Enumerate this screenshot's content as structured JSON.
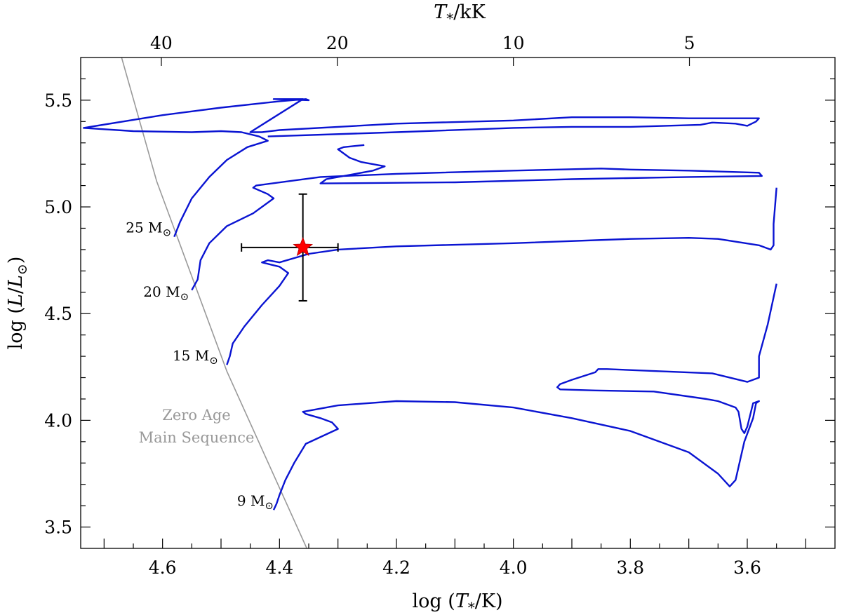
{
  "chart_data": {
    "type": "line",
    "xlabel_bottom": {
      "main": "log (",
      "sym": "T",
      "sub": "*",
      "tail": "/K)"
    },
    "xlabel_top": {
      "sym": "T",
      "sub": "*",
      "tail": "/kK"
    },
    "ylabel": {
      "main": "log (",
      "sym": "L",
      "mid": "/",
      "sym2": "L",
      "sub": "⊙",
      "tail": ")"
    },
    "xlim": [
      4.74,
      3.45
    ],
    "ylim": [
      3.4,
      5.7
    ],
    "x_axis_reversed": true,
    "x_ticks": [
      4.6,
      4.4,
      4.2,
      4.0,
      3.8,
      3.6
    ],
    "x_tick_labels": [
      "4.6",
      "4.4",
      "4.2",
      "4.0",
      "3.8",
      "3.6"
    ],
    "y_ticks": [
      3.5,
      4.0,
      4.5,
      5.0,
      5.5
    ],
    "y_tick_labels": [
      "3.5",
      "4.0",
      "4.5",
      "5.0",
      "5.5"
    ],
    "top_ticks_kK": [
      40,
      20,
      10,
      5
    ],
    "top_tick_labels": [
      "40",
      "20",
      "10",
      "5"
    ],
    "grid": false,
    "colors": {
      "tracks": "#0a14d2",
      "zams": "#999999",
      "star": "#ff0000",
      "errorbar": "#000000"
    },
    "zams": {
      "label_lines": [
        "Zero Age",
        "Main Sequence"
      ],
      "points": [
        [
          4.67,
          5.7
        ],
        [
          4.61,
          5.12
        ],
        [
          4.49,
          4.23
        ],
        [
          4.35,
          3.38
        ]
      ]
    },
    "mass_labels": [
      {
        "text": "25 M",
        "sun": "⊙",
        "x": 4.585,
        "y": 4.88
      },
      {
        "text": "20 M",
        "sun": "⊙",
        "x": 4.555,
        "y": 4.58
      },
      {
        "text": "15 M",
        "sun": "⊙",
        "x": 4.505,
        "y": 4.28
      },
      {
        "text": "9 M",
        "sun": "⊙",
        "x": 4.41,
        "y": 3.6
      }
    ],
    "star_point": {
      "x": 4.36,
      "y": 4.81,
      "xerr": [
        4.465,
        4.3
      ],
      "yerr": [
        4.56,
        5.06
      ]
    },
    "series": [
      {
        "points": [
          [
            4.58,
            4.86
          ],
          [
            4.57,
            4.93
          ],
          [
            4.55,
            5.04
          ],
          [
            4.52,
            5.14
          ],
          [
            4.49,
            5.22
          ],
          [
            4.455,
            5.28
          ],
          [
            4.42,
            5.31
          ],
          [
            4.435,
            5.33
          ],
          [
            4.465,
            5.35
          ],
          [
            4.5,
            5.355
          ],
          [
            4.55,
            5.35
          ],
          [
            4.65,
            5.355
          ],
          [
            4.735,
            5.37
          ],
          [
            4.6,
            5.43
          ],
          [
            4.5,
            5.465
          ],
          [
            4.4,
            5.495
          ],
          [
            4.355,
            5.505
          ],
          [
            4.35,
            5.5
          ],
          [
            4.41,
            5.505
          ],
          [
            4.36,
            5.505
          ],
          [
            4.45,
            5.35
          ],
          [
            4.43,
            5.35
          ],
          [
            4.4,
            5.36
          ],
          [
            4.2,
            5.39
          ],
          [
            4.0,
            5.405
          ],
          [
            3.9,
            5.42
          ],
          [
            3.8,
            5.42
          ],
          [
            3.7,
            5.415
          ],
          [
            3.58,
            5.415
          ],
          [
            3.585,
            5.4
          ],
          [
            3.6,
            5.38
          ],
          [
            3.62,
            5.39
          ],
          [
            3.66,
            5.395
          ],
          [
            3.68,
            5.385
          ],
          [
            3.8,
            5.375
          ],
          [
            3.9,
            5.375
          ],
          [
            4.0,
            5.37
          ],
          [
            4.2,
            5.35
          ],
          [
            4.42,
            5.33
          ]
        ]
      },
      {
        "points": [
          [
            4.55,
            4.61
          ],
          [
            4.54,
            4.66
          ],
          [
            4.535,
            4.75
          ],
          [
            4.52,
            4.83
          ],
          [
            4.49,
            4.91
          ],
          [
            4.445,
            4.97
          ],
          [
            4.41,
            5.04
          ],
          [
            4.42,
            5.06
          ],
          [
            4.445,
            5.09
          ],
          [
            4.44,
            5.1
          ],
          [
            4.33,
            5.14
          ],
          [
            4.2,
            5.155
          ],
          [
            4.0,
            5.17
          ],
          [
            3.85,
            5.18
          ],
          [
            3.8,
            5.175
          ],
          [
            3.7,
            5.17
          ],
          [
            3.58,
            5.16
          ],
          [
            3.575,
            5.145
          ],
          [
            3.7,
            5.14
          ],
          [
            3.9,
            5.13
          ],
          [
            4.1,
            5.115
          ],
          [
            4.33,
            5.11
          ],
          [
            4.32,
            5.13
          ],
          [
            4.3,
            5.14
          ],
          [
            4.24,
            5.17
          ],
          [
            4.22,
            5.19
          ],
          [
            4.26,
            5.21
          ],
          [
            4.28,
            5.23
          ],
          [
            4.3,
            5.27
          ],
          [
            4.29,
            5.28
          ],
          [
            4.255,
            5.29
          ]
        ]
      },
      {
        "points": [
          [
            4.49,
            4.26
          ],
          [
            4.485,
            4.3
          ],
          [
            4.48,
            4.36
          ],
          [
            4.46,
            4.44
          ],
          [
            4.43,
            4.54
          ],
          [
            4.4,
            4.63
          ],
          [
            4.385,
            4.69
          ],
          [
            4.4,
            4.72
          ],
          [
            4.43,
            4.74
          ],
          [
            4.42,
            4.75
          ],
          [
            4.4,
            4.74
          ],
          [
            4.35,
            4.78
          ],
          [
            4.3,
            4.8
          ],
          [
            4.2,
            4.815
          ],
          [
            4.0,
            4.83
          ],
          [
            3.8,
            4.85
          ],
          [
            3.7,
            4.855
          ],
          [
            3.65,
            4.85
          ],
          [
            3.58,
            4.82
          ],
          [
            3.56,
            4.8
          ],
          [
            3.555,
            4.82
          ],
          [
            3.555,
            4.92
          ],
          [
            3.55,
            5.09
          ]
        ]
      },
      {
        "points": [
          [
            4.41,
            3.58
          ],
          [
            4.405,
            3.61
          ],
          [
            4.4,
            3.65
          ],
          [
            4.39,
            3.72
          ],
          [
            4.375,
            3.8
          ],
          [
            4.355,
            3.89
          ],
          [
            4.3,
            3.96
          ],
          [
            4.31,
            3.99
          ],
          [
            4.33,
            4.01
          ],
          [
            4.355,
            4.03
          ],
          [
            4.36,
            4.04
          ],
          [
            4.3,
            4.07
          ],
          [
            4.2,
            4.09
          ],
          [
            4.1,
            4.085
          ],
          [
            4.0,
            4.06
          ],
          [
            3.9,
            4.01
          ],
          [
            3.8,
            3.95
          ],
          [
            3.7,
            3.85
          ],
          [
            3.65,
            3.75
          ],
          [
            3.63,
            3.69
          ],
          [
            3.62,
            3.72
          ],
          [
            3.605,
            3.9
          ],
          [
            3.59,
            4.01
          ],
          [
            3.585,
            4.08
          ],
          [
            3.58,
            4.09
          ],
          [
            3.59,
            4.08
          ],
          [
            3.6,
            3.97
          ],
          [
            3.605,
            3.94
          ],
          [
            3.61,
            3.96
          ],
          [
            3.615,
            4.04
          ],
          [
            3.62,
            4.06
          ],
          [
            3.65,
            4.09
          ],
          [
            3.67,
            4.1
          ],
          [
            3.76,
            4.135
          ],
          [
            3.86,
            4.14
          ],
          [
            3.92,
            4.145
          ],
          [
            3.925,
            4.155
          ],
          [
            3.92,
            4.17
          ],
          [
            3.9,
            4.19
          ],
          [
            3.86,
            4.225
          ],
          [
            3.855,
            4.24
          ],
          [
            3.84,
            4.24
          ],
          [
            3.66,
            4.22
          ],
          [
            3.6,
            4.18
          ],
          [
            3.58,
            4.2
          ],
          [
            3.58,
            4.3
          ],
          [
            3.565,
            4.45
          ],
          [
            3.55,
            4.64
          ]
        ]
      }
    ]
  }
}
